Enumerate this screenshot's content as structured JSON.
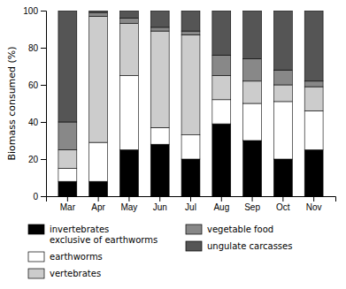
{
  "chart_data": {
    "type": "bar",
    "stacked": true,
    "y_label": "Biomass consumed (%)",
    "categories": [
      "Mar",
      "Apr",
      "May",
      "Jun",
      "Jul",
      "Aug",
      "Sep",
      "Oct",
      "Nov"
    ],
    "series": [
      {
        "name": "invertebrates\nexclusive of earthworms",
        "color": "#000000",
        "values": [
          8,
          8,
          25,
          28,
          20,
          39,
          30,
          20,
          25
        ]
      },
      {
        "name": "earthworms",
        "color": "#ffffff",
        "values": [
          7,
          21,
          40,
          9,
          13,
          13,
          20,
          31,
          21
        ]
      },
      {
        "name": "vertebrates",
        "color": "#cccccc",
        "values": [
          10,
          68,
          28,
          52,
          54,
          13,
          12,
          9,
          13
        ]
      },
      {
        "name": "vegetable food",
        "color": "#888888",
        "values": [
          15,
          2,
          3,
          2,
          2,
          11,
          12,
          8,
          3
        ]
      },
      {
        "name": "ungulate carcasses",
        "color": "#555555",
        "values": [
          60,
          1,
          4,
          9,
          11,
          24,
          26,
          32,
          38
        ]
      }
    ],
    "ylim": [
      0,
      100
    ],
    "yticks": [
      0,
      20,
      40,
      60,
      80,
      100
    ],
    "grid": false
  }
}
